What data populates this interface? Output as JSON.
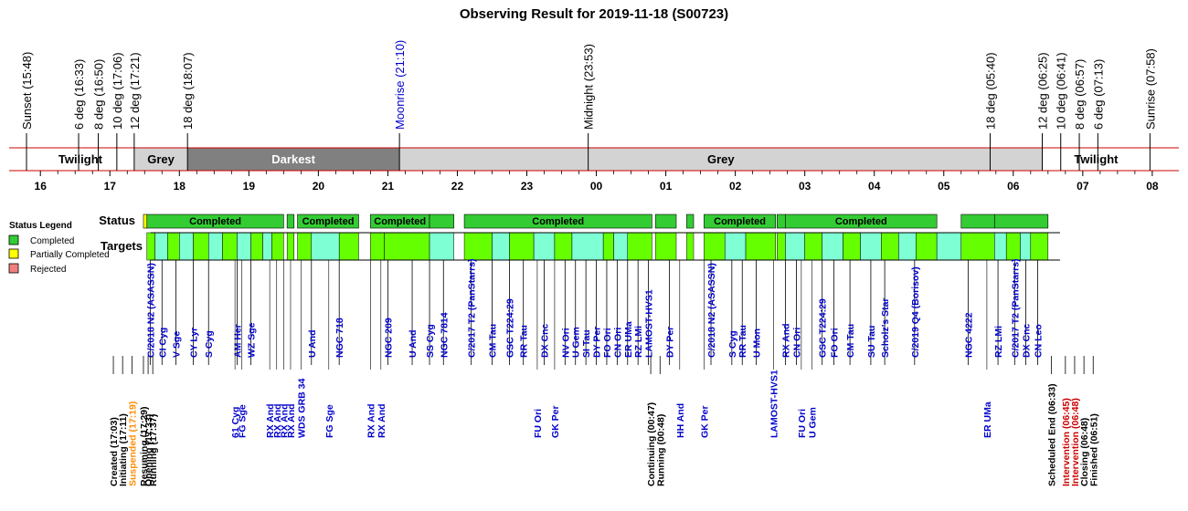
{
  "chart_data": {
    "type": "timeline",
    "title": "Observing Result for 2019-11-18 (S00723)",
    "x_axis": {
      "start_hour": 15.8,
      "end_hour": 32.133
    },
    "hour_ticks": [
      {
        "h": 16,
        "label": "16"
      },
      {
        "h": 17,
        "label": "17"
      },
      {
        "h": 18,
        "label": "18"
      },
      {
        "h": 19,
        "label": "19"
      },
      {
        "h": 20,
        "label": "20"
      },
      {
        "h": 21,
        "label": "21"
      },
      {
        "h": 22,
        "label": "22"
      },
      {
        "h": 23,
        "label": "23"
      },
      {
        "h": 24,
        "label": "00"
      },
      {
        "h": 25,
        "label": "01"
      },
      {
        "h": 26,
        "label": "02"
      },
      {
        "h": 27,
        "label": "03"
      },
      {
        "h": 28,
        "label": "04"
      },
      {
        "h": 29,
        "label": "05"
      },
      {
        "h": 30,
        "label": "06"
      },
      {
        "h": 31,
        "label": "07"
      },
      {
        "h": 32,
        "label": "08"
      }
    ],
    "sky_events": [
      {
        "h": 15.8,
        "label": "Sunset (15:48)",
        "color": "#000000"
      },
      {
        "h": 16.55,
        "label": "6 deg (16:33)",
        "color": "#000000"
      },
      {
        "h": 16.833,
        "label": "8 deg (16:50)",
        "color": "#000000"
      },
      {
        "h": 17.1,
        "label": "10 deg (17:06)",
        "color": "#000000"
      },
      {
        "h": 17.35,
        "label": "12 deg (17:21)",
        "color": "#000000"
      },
      {
        "h": 18.117,
        "label": "18 deg (18:07)",
        "color": "#000000"
      },
      {
        "h": 21.167,
        "label": "Moonrise (21:10)",
        "color": "#0000cc"
      },
      {
        "h": 23.883,
        "label": "Midnight (23:53)",
        "color": "#000000"
      },
      {
        "h": 29.667,
        "label": "18 deg (05:40)",
        "color": "#000000"
      },
      {
        "h": 30.417,
        "label": "12 deg (06:25)",
        "color": "#000000"
      },
      {
        "h": 30.683,
        "label": "10 deg (06:41)",
        "color": "#000000"
      },
      {
        "h": 30.95,
        "label": "8 deg (06:57)",
        "color": "#000000"
      },
      {
        "h": 31.217,
        "label": "6 deg (07:13)",
        "color": "#000000"
      },
      {
        "h": 31.967,
        "label": "Sunrise (07:58)",
        "color": "#000000"
      }
    ],
    "sky_bands": [
      {
        "start": 15.8,
        "end": 17.35,
        "label": "Twilight",
        "fill": "#ffffff",
        "text_color": "#000000"
      },
      {
        "start": 17.35,
        "end": 18.117,
        "label": "Grey",
        "fill": "#d3d3d3",
        "text_color": "#000000"
      },
      {
        "start": 18.117,
        "end": 21.167,
        "label": "Darkest",
        "fill": "#808080",
        "text_color": "#ffffff"
      },
      {
        "start": 21.167,
        "end": 30.417,
        "label": "Grey",
        "fill": "#d3d3d3",
        "text_color": "#000000"
      },
      {
        "start": 30.417,
        "end": 31.967,
        "label": "Twilight",
        "fill": "#ffffff",
        "text_color": "#000000"
      }
    ],
    "rows": {
      "status": "Status",
      "targets": "Targets"
    },
    "legend": {
      "title": "Status Legend",
      "items": [
        {
          "label": "Completed",
          "color": "#33cc33"
        },
        {
          "label": "Partially Completed",
          "color": "#ffff00"
        },
        {
          "label": "Rejected",
          "color": "#f08080"
        }
      ]
    },
    "status_segments": [
      {
        "start": 17.483,
        "end": 17.533,
        "status": "Partially Completed",
        "label": ""
      },
      {
        "start": 17.533,
        "end": 19.5,
        "status": "Completed",
        "label": "Completed"
      },
      {
        "start": 19.55,
        "end": 19.65,
        "status": "Completed",
        "label": ""
      },
      {
        "start": 19.7,
        "end": 20.58,
        "status": "Completed",
        "label": "Completed"
      },
      {
        "start": 20.75,
        "end": 21.6,
        "status": "Completed",
        "label": "Completed"
      },
      {
        "start": 21.6,
        "end": 21.95,
        "status": "Completed",
        "label": ""
      },
      {
        "start": 22.1,
        "end": 24.8,
        "status": "Completed",
        "label": "Completed"
      },
      {
        "start": 24.85,
        "end": 25.15,
        "status": "Completed",
        "label": ""
      },
      {
        "start": 25.3,
        "end": 25.4,
        "status": "Completed",
        "label": ""
      },
      {
        "start": 25.55,
        "end": 26.58,
        "status": "Completed",
        "label": "Completed"
      },
      {
        "start": 26.6,
        "end": 26.72,
        "status": "Completed",
        "label": ""
      },
      {
        "start": 26.72,
        "end": 28.9,
        "status": "Completed",
        "label": "Completed"
      },
      {
        "start": 29.25,
        "end": 29.73,
        "status": "Completed",
        "label": ""
      },
      {
        "start": 29.73,
        "end": 30.5,
        "status": "Completed",
        "label": ""
      }
    ],
    "target_blocks": [
      [
        17.533,
        17.65,
        "g"
      ],
      [
        17.65,
        17.83,
        "c"
      ],
      [
        17.83,
        18.0,
        "g"
      ],
      [
        18.0,
        18.2,
        "c"
      ],
      [
        18.2,
        18.42,
        "g"
      ],
      [
        18.42,
        18.62,
        "c"
      ],
      [
        18.62,
        18.83,
        "g"
      ],
      [
        18.83,
        19.03,
        "c"
      ],
      [
        19.03,
        19.2,
        "g"
      ],
      [
        19.2,
        19.33,
        "c"
      ],
      [
        19.33,
        19.5,
        "g"
      ],
      [
        19.55,
        19.65,
        "g"
      ],
      [
        19.7,
        19.9,
        "g"
      ],
      [
        19.9,
        20.3,
        "c"
      ],
      [
        20.3,
        20.58,
        "g"
      ],
      [
        20.75,
        20.95,
        "g"
      ],
      [
        20.95,
        21.6,
        "g"
      ],
      [
        21.6,
        21.95,
        "c"
      ],
      [
        22.1,
        22.5,
        "g"
      ],
      [
        22.5,
        22.75,
        "c"
      ],
      [
        22.75,
        23.1,
        "g"
      ],
      [
        23.1,
        23.4,
        "c"
      ],
      [
        23.4,
        23.65,
        "g"
      ],
      [
        23.65,
        24.1,
        "c"
      ],
      [
        24.1,
        24.25,
        "g"
      ],
      [
        24.25,
        24.45,
        "c"
      ],
      [
        24.45,
        24.8,
        "g"
      ],
      [
        24.85,
        25.15,
        "g"
      ],
      [
        25.3,
        25.4,
        "g"
      ],
      [
        25.55,
        25.85,
        "g"
      ],
      [
        25.85,
        26.15,
        "c"
      ],
      [
        26.15,
        26.58,
        "g"
      ],
      [
        26.6,
        26.72,
        "g"
      ],
      [
        26.72,
        27.0,
        "c"
      ],
      [
        27.0,
        27.25,
        "g"
      ],
      [
        27.25,
        27.55,
        "c"
      ],
      [
        27.55,
        27.8,
        "g"
      ],
      [
        27.8,
        28.1,
        "c"
      ],
      [
        28.1,
        28.35,
        "g"
      ],
      [
        28.35,
        28.6,
        "c"
      ],
      [
        28.6,
        28.9,
        "g"
      ],
      [
        28.9,
        29.25,
        "c"
      ],
      [
        29.25,
        29.73,
        "g"
      ],
      [
        29.73,
        29.9,
        "c"
      ],
      [
        29.9,
        30.1,
        "g"
      ],
      [
        30.1,
        30.25,
        "c"
      ],
      [
        30.25,
        30.5,
        "g"
      ]
    ],
    "target_labels": [
      {
        "h": 17.58,
        "label": "C/2018 N2 (ASASSN)"
      },
      {
        "h": 17.75,
        "label": "CI Cyg"
      },
      {
        "h": 17.95,
        "label": "V Sge"
      },
      {
        "h": 18.2,
        "label": "CY Lyr"
      },
      {
        "h": 18.42,
        "label": "S Cyg"
      },
      {
        "h": 18.83,
        "label": "AM Her"
      },
      {
        "h": 19.03,
        "label": "WZ Sge"
      },
      {
        "h": 19.9,
        "label": "U And"
      },
      {
        "h": 20.3,
        "label": "NGC 718"
      },
      {
        "h": 21.0,
        "label": "NGC 209"
      },
      {
        "h": 21.35,
        "label": "U And"
      },
      {
        "h": 21.6,
        "label": "SS Cyg"
      },
      {
        "h": 21.8,
        "label": "NGC 7814"
      },
      {
        "h": 22.2,
        "label": "C/2017 T2 (PanStarrs)"
      },
      {
        "h": 22.5,
        "label": "CM Tau"
      },
      {
        "h": 22.75,
        "label": "GSC T224:29"
      },
      {
        "h": 22.95,
        "label": "RR Tau"
      },
      {
        "h": 23.25,
        "label": "DX Cnc"
      },
      {
        "h": 23.55,
        "label": "NV Ori"
      },
      {
        "h": 23.7,
        "label": "U Gem"
      },
      {
        "h": 23.85,
        "label": "SI Tau"
      },
      {
        "h": 24.0,
        "label": "DY Per"
      },
      {
        "h": 24.15,
        "label": "FO Ori"
      },
      {
        "h": 24.3,
        "label": "CN Ori"
      },
      {
        "h": 24.45,
        "label": "ER UMa"
      },
      {
        "h": 24.6,
        "label": "RZ LMi"
      },
      {
        "h": 24.75,
        "label": "LAMOST-HVS1"
      },
      {
        "h": 25.05,
        "label": "DY Per"
      },
      {
        "h": 25.65,
        "label": "C/2018 N2 (ASASSN)"
      },
      {
        "h": 25.95,
        "label": "S Cyg"
      },
      {
        "h": 26.1,
        "label": "RR Tau"
      },
      {
        "h": 26.3,
        "label": "U Mon"
      },
      {
        "h": 26.72,
        "label": "RX And"
      },
      {
        "h": 26.88,
        "label": "CN Ori"
      },
      {
        "h": 27.25,
        "label": "GSC T224:29"
      },
      {
        "h": 27.42,
        "label": "FO Ori"
      },
      {
        "h": 27.65,
        "label": "CM Tau"
      },
      {
        "h": 27.95,
        "label": "SU Tau"
      },
      {
        "h": 28.15,
        "label": "Scholz's Star"
      },
      {
        "h": 28.58,
        "label": "C/2019 Q4 (Borisov)"
      },
      {
        "h": 29.35,
        "label": "NGC 4222"
      },
      {
        "h": 29.78,
        "label": "RZ LMi"
      },
      {
        "h": 30.02,
        "label": "C/2017 T2 (PanStarrs)"
      },
      {
        "h": 30.18,
        "label": "DX Cnc"
      },
      {
        "h": 30.35,
        "label": "CN Leo"
      }
    ],
    "lower_labels": [
      {
        "h": 18.8,
        "label": "61 Cyg"
      },
      {
        "h": 18.9,
        "label": "FG Sge"
      },
      {
        "h": 19.3,
        "label": "RX And"
      },
      {
        "h": 19.4,
        "label": "RX And"
      },
      {
        "h": 19.5,
        "label": "RX And"
      },
      {
        "h": 19.6,
        "label": "RX And"
      },
      {
        "h": 19.75,
        "label": "WDS GRB 34"
      },
      {
        "h": 20.15,
        "label": "FG Sge"
      },
      {
        "h": 20.75,
        "label": "RX And"
      },
      {
        "h": 20.9,
        "label": "RX And"
      },
      {
        "h": 23.15,
        "label": "FU Ori"
      },
      {
        "h": 23.4,
        "label": "GK Per"
      },
      {
        "h": 25.2,
        "label": "HH And"
      },
      {
        "h": 25.55,
        "label": "GK Per"
      },
      {
        "h": 26.55,
        "label": "LAMOST-HVS1"
      },
      {
        "h": 26.95,
        "label": "FU Ori"
      },
      {
        "h": 27.1,
        "label": "U Gem"
      },
      {
        "h": 29.62,
        "label": "ER UMa"
      }
    ],
    "log_events": [
      {
        "h": 17.05,
        "label": "Created (17:03)",
        "color": "#000000"
      },
      {
        "h": 17.183,
        "label": "Initiating (17:11)",
        "color": "#000000"
      },
      {
        "h": 17.317,
        "label": "Suspended (17:19)",
        "color": "#ff8c00"
      },
      {
        "h": 17.483,
        "label": "Resuming (17:29)",
        "color": "#000000"
      },
      {
        "h": 17.55,
        "label": "Opening (17:33)",
        "color": "#000000"
      },
      {
        "h": 17.617,
        "label": "Running (17:37)",
        "color": "#000000"
      },
      {
        "h": 24.783,
        "label": "Continuing (00:47)",
        "color": "#000000"
      },
      {
        "h": 24.917,
        "label": "Running (00:48)",
        "color": "#000000"
      },
      {
        "h": 30.55,
        "label": "Scheduled End (06:33)",
        "color": "#000000"
      },
      {
        "h": 30.75,
        "label": "Intervention (06:45)",
        "color": "#cc0000"
      },
      {
        "h": 30.883,
        "label": "Intervention (06:48)",
        "color": "#cc0000"
      },
      {
        "h": 31.017,
        "label": "Closing (06:48)",
        "color": "#000000"
      },
      {
        "h": 31.15,
        "label": "Finished (06:51)",
        "color": "#000000"
      }
    ]
  }
}
